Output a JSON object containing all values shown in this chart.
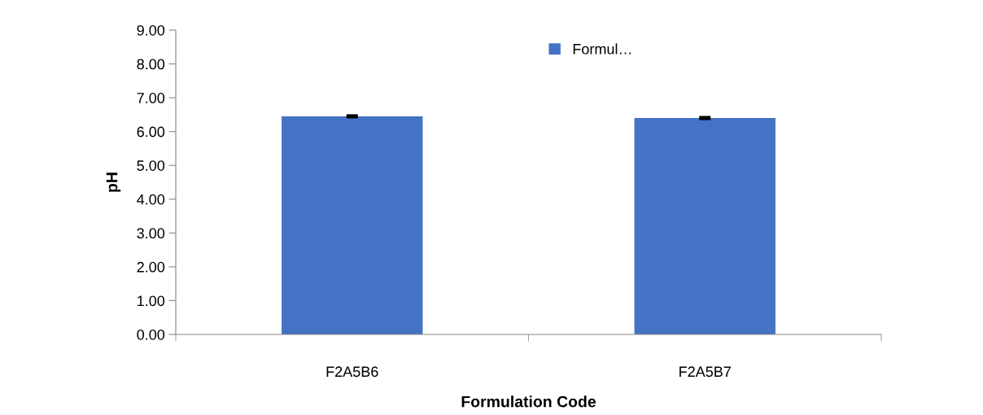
{
  "chart_data": {
    "type": "bar",
    "xlabel": "Formulation Code",
    "ylabel": "pH",
    "categories": [
      "F2A5B6",
      "F2A5B7"
    ],
    "series": [
      {
        "name": "Formul…",
        "color": "#4472c4",
        "values": [
          6.45,
          6.4
        ],
        "errors": [
          0.02,
          0.02
        ]
      }
    ],
    "ylim": [
      0,
      9
    ],
    "yticks": [
      {
        "value": 0,
        "label": "0.00"
      },
      {
        "value": 1,
        "label": "1.00"
      },
      {
        "value": 2,
        "label": "2.00"
      },
      {
        "value": 3,
        "label": "3.00"
      },
      {
        "value": 4,
        "label": "4.00"
      },
      {
        "value": 5,
        "label": "5.00"
      },
      {
        "value": 6,
        "label": "6.00"
      },
      {
        "value": 7,
        "label": "7.00"
      },
      {
        "value": 8,
        "label": "8.00"
      },
      {
        "value": 9,
        "label": "9.00"
      }
    ],
    "grid": false,
    "legend": "top"
  }
}
